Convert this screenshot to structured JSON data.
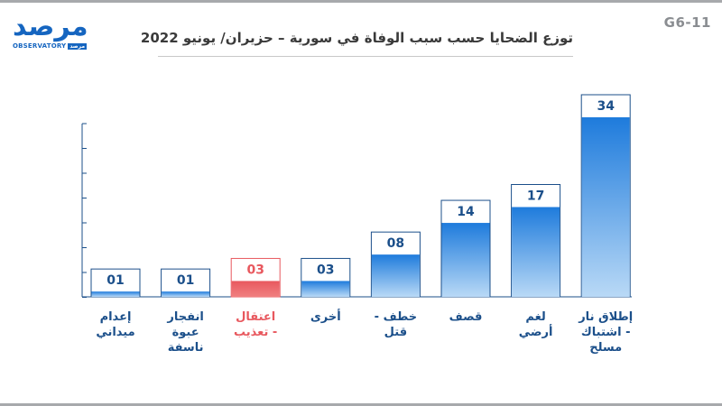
{
  "header": {
    "code": "G6-11",
    "title": "توزع الضحايا حسب سبب الوفاة في سورية – حزيران/ يونيو 2022"
  },
  "logo": {
    "main": "مرصد",
    "sub_latin": "OBSERVATORY",
    "sub_arabic": "مرصد"
  },
  "colors": {
    "bar_fill": "#1e7bdc",
    "bar_fill_light": "#b9d9f6",
    "bar_border": "#1b4f8a",
    "highlight_fill": "#f08080",
    "highlight_border": "#e8585e",
    "label_color": "#1b4f8a"
  },
  "chart_data": {
    "type": "bar",
    "title": "توزع الضحايا حسب سبب الوفاة في سورية – حزيران/ يونيو 2022",
    "categories": [
      "إعدام\nميداني",
      "انفجار\nعبوة\nناسفة",
      "اعتقال\n- تعذيب",
      "أخرى",
      "خطف -\nقتل",
      "قصف",
      "لغم\nأرضي",
      "إطلاق نار\n- اشتباك\nمسلح"
    ],
    "values": [
      1,
      1,
      3,
      3,
      8,
      14,
      17,
      34
    ],
    "value_labels": [
      "01",
      "01",
      "03",
      "03",
      "08",
      "14",
      "17",
      "34"
    ],
    "highlight_index": 2,
    "ylim": [
      0,
      34
    ],
    "grid": false
  }
}
